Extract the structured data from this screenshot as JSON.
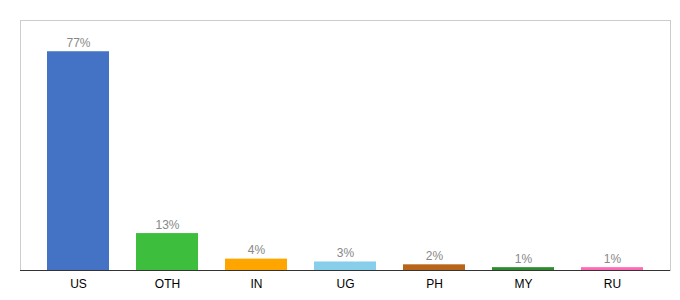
{
  "chart_data": {
    "type": "bar",
    "categories": [
      "US",
      "OTH",
      "IN",
      "UG",
      "PH",
      "MY",
      "RU"
    ],
    "values": [
      77,
      13,
      4,
      3,
      2,
      1,
      1
    ],
    "value_labels": [
      "77%",
      "13%",
      "4%",
      "3%",
      "2%",
      "1%",
      "1%"
    ],
    "colors": [
      "#4472C4",
      "#3DBF3D",
      "#FFA500",
      "#87CEEB",
      "#B8651A",
      "#2E8B2E",
      "#FF69B4"
    ],
    "ylim": [
      0,
      88
    ],
    "grid": false,
    "data_labels": true,
    "tick_labels": "x"
  }
}
